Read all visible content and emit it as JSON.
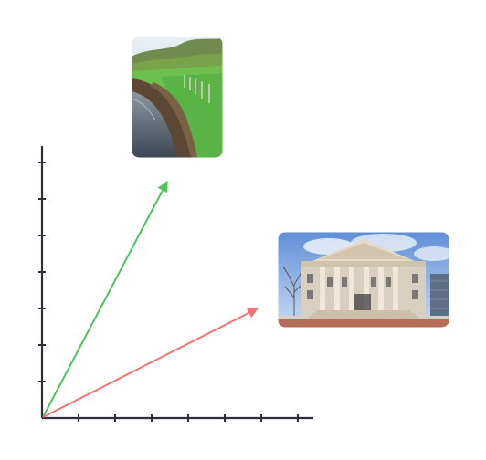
{
  "diagram": {
    "description_visible_text": "",
    "colors": {
      "axis": "#2a2f3a",
      "green_arrow": "#4cc35d",
      "red_arrow": "#f07474",
      "background": "#ffffff"
    },
    "images": {
      "top": {
        "semantic": "riverbank-erosion-photo"
      },
      "right": {
        "semantic": "neoclassical-building-photo"
      }
    }
  }
}
